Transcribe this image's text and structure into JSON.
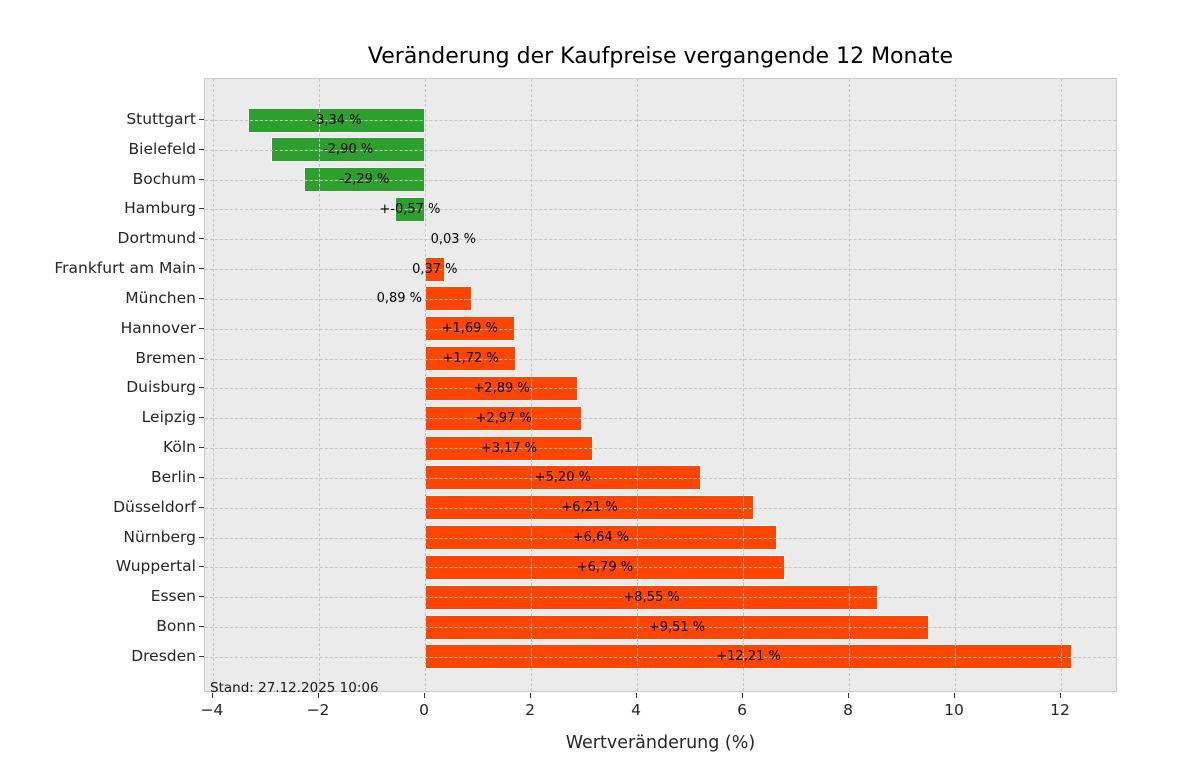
{
  "chart_data": {
    "type": "bar",
    "orientation": "horizontal",
    "title": "Veränderung der Kaufpreise vergangende 12 Monate",
    "xlabel": "Wertveränderung (%)",
    "ylabel": "",
    "categories": [
      "Stuttgart",
      "Bielefeld",
      "Bochum",
      "Hamburg",
      "Dortmund",
      "Frankfurt am Main",
      "München",
      "Hannover",
      "Bremen",
      "Duisburg",
      "Leipzig",
      "Köln",
      "Berlin",
      "Düsseldorf",
      "Nürnberg",
      "Wuppertal",
      "Essen",
      "Bonn",
      "Dresden"
    ],
    "values": [
      -3.34,
      -2.9,
      -2.29,
      -0.57,
      0.03,
      0.37,
      0.89,
      1.69,
      1.72,
      2.89,
      2.97,
      3.17,
      5.2,
      6.21,
      6.64,
      6.79,
      8.55,
      9.51,
      12.21
    ],
    "bar_labels": [
      "-3,34 %",
      "-2,90 %",
      "-2,29 %",
      "+-0,57 %",
      "0,03 %",
      "0,37 %",
      "0,89 %",
      "+1,69 %",
      "+1,72 %",
      "+2,89 %",
      "+2,97 %",
      "+3,17 %",
      "+5,20 %",
      "+6,21 %",
      "+6,64 %",
      "+6,79 %",
      "+8,55 %",
      "+9,51 %",
      "+12,21 %"
    ],
    "bar_label_align": [
      "center",
      "center",
      "center",
      "center",
      "zero-right",
      "center",
      "zero-left",
      "center",
      "center",
      "center",
      "center",
      "center",
      "center",
      "center",
      "center",
      "center",
      "center",
      "center",
      "center"
    ],
    "colors": {
      "negative": "#2ca02c",
      "positive": "#ff4500",
      "bar_edge": "#ffffff",
      "plot_background": "#ebebeb",
      "grid": "#c4c4c4"
    },
    "xticks": [
      -4,
      -2,
      0,
      2,
      4,
      6,
      8,
      10,
      12
    ],
    "xtick_labels": [
      "−4",
      "−2",
      "0",
      "2",
      "4",
      "6",
      "8",
      "10",
      "12"
    ],
    "xlim": [
      -4.15,
      13.08
    ],
    "grid": true,
    "grid_style": "dashed",
    "legend": false,
    "annotation": "Stand: 27.12.2025 10:06"
  }
}
